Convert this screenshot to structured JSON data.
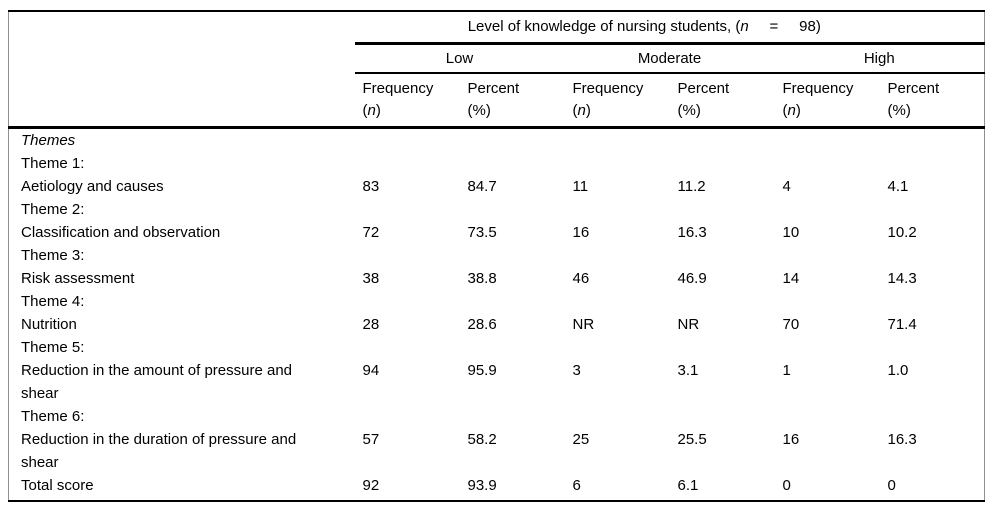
{
  "table": {
    "header": {
      "title_prefix": "Level of knowledge of nursing students, (",
      "title_n": "n",
      "title_suffix": "     =     98)",
      "levels": [
        "Low",
        "Moderate",
        "High"
      ],
      "frequency_label": "Frequency",
      "n_open": "(",
      "n_symbol": "n",
      "n_close": ")",
      "percent_label": "Percent",
      "percent_unit": "(%)"
    },
    "rows": [
      {
        "type": "section",
        "label": "Themes"
      },
      {
        "type": "subhead",
        "label": "Theme 1:"
      },
      {
        "type": "data",
        "label": "Aetiology and causes",
        "values": [
          "83",
          "84.7",
          "11",
          "11.2",
          "4",
          "4.1"
        ]
      },
      {
        "type": "subhead",
        "label": "Theme 2:"
      },
      {
        "type": "data",
        "label": "Classification and observation",
        "values": [
          "72",
          "73.5",
          "16",
          "16.3",
          "10",
          "10.2"
        ]
      },
      {
        "type": "subhead",
        "label": "Theme 3:"
      },
      {
        "type": "data",
        "label": "Risk assessment",
        "values": [
          "38",
          "38.8",
          "46",
          "46.9",
          "14",
          "14.3"
        ]
      },
      {
        "type": "subhead",
        "label": "Theme 4:"
      },
      {
        "type": "data",
        "label": "Nutrition",
        "values": [
          "28",
          "28.6",
          "NR",
          "NR",
          "70",
          "71.4"
        ]
      },
      {
        "type": "subhead",
        "label": "Theme 5:"
      },
      {
        "type": "data",
        "label": "Reduction in the amount of pressure and shear",
        "values": [
          "94",
          "95.9",
          "3",
          "3.1",
          "1",
          "1.0"
        ]
      },
      {
        "type": "subhead",
        "label": "Theme 6:"
      },
      {
        "type": "data",
        "label": "Reduction in the duration of pressure and shear",
        "values": [
          "57",
          "58.2",
          "25",
          "25.5",
          "16",
          "16.3"
        ]
      },
      {
        "type": "data",
        "label": "Total score",
        "values": [
          "92",
          "93.9",
          "6",
          "6.1",
          "0",
          "0"
        ]
      }
    ]
  },
  "chart_data": {
    "type": "table",
    "title": "Level of knowledge of nursing students, (n = 98)",
    "column_groups": [
      "Low",
      "Moderate",
      "High"
    ],
    "columns": [
      "Themes",
      "Low Frequency (n)",
      "Low Percent (%)",
      "Moderate Frequency (n)",
      "Moderate Percent (%)",
      "High Frequency (n)",
      "High Percent (%)"
    ],
    "rows": [
      [
        "Theme 1: Aetiology and causes",
        "83",
        "84.7",
        "11",
        "11.2",
        "4",
        "4.1"
      ],
      [
        "Theme 2: Classification and observation",
        "72",
        "73.5",
        "16",
        "16.3",
        "10",
        "10.2"
      ],
      [
        "Theme 3: Risk assessment",
        "38",
        "38.8",
        "46",
        "46.9",
        "14",
        "14.3"
      ],
      [
        "Theme 4: Nutrition",
        "28",
        "28.6",
        "NR",
        "NR",
        "70",
        "71.4"
      ],
      [
        "Theme 5: Reduction in the amount of pressure and shear",
        "94",
        "95.9",
        "3",
        "3.1",
        "1",
        "1.0"
      ],
      [
        "Theme 6: Reduction in the duration of pressure and shear",
        "57",
        "58.2",
        "25",
        "25.5",
        "16",
        "16.3"
      ],
      [
        "Total score",
        "92",
        "93.9",
        "6",
        "6.1",
        "0",
        "0"
      ]
    ]
  },
  "colors": {
    "text": "#000000",
    "rule_heavy": "#000000",
    "rule_outer": "#909090",
    "background": "#ffffff"
  }
}
